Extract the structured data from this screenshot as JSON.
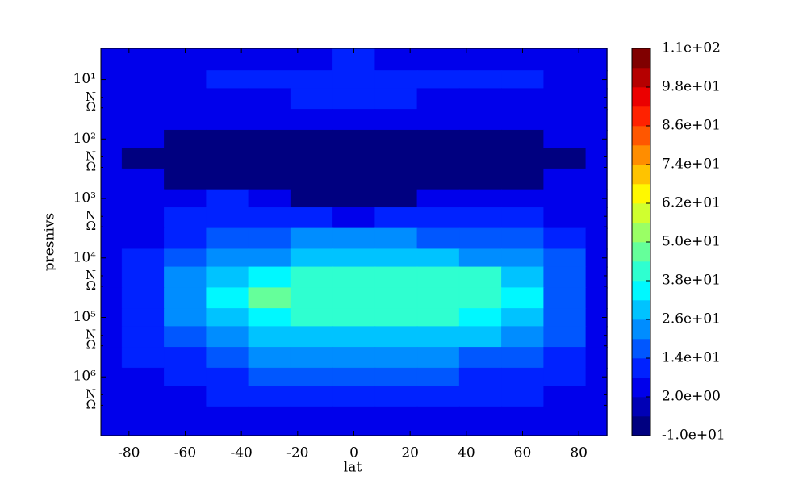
{
  "chart_data": {
    "type": "contour",
    "x_label": "lat",
    "y_label": "presnivs",
    "colormap": "jet",
    "y_log": true,
    "y_inverted": true,
    "xlim": [
      -90,
      90
    ],
    "xticks": [
      -80,
      -60,
      -40,
      -20,
      0,
      20,
      40,
      60,
      80
    ],
    "ylim": [
      3,
      9700000
    ],
    "yticks": [
      {
        "value": 10,
        "label": "10¹"
      },
      {
        "value": 20,
        "label": "N"
      },
      {
        "value": 30,
        "label": "Ω"
      },
      {
        "value": 100,
        "label": "10²"
      },
      {
        "value": 200,
        "label": "N"
      },
      {
        "value": 300,
        "label": "Ω"
      },
      {
        "value": 1000,
        "label": "10³"
      },
      {
        "value": 2000,
        "label": "N"
      },
      {
        "value": 3000,
        "label": "Ω"
      },
      {
        "value": 10000,
        "label": "10⁴"
      },
      {
        "value": 20000,
        "label": "N"
      },
      {
        "value": 30000,
        "label": "Ω"
      },
      {
        "value": 100000,
        "label": "10⁵"
      },
      {
        "value": 200000,
        "label": "N"
      },
      {
        "value": 300000,
        "label": "Ω"
      },
      {
        "value": 1000000,
        "label": "10⁶"
      },
      {
        "value": 2000000,
        "label": "N"
      },
      {
        "value": 3000000,
        "label": "Ω"
      }
    ],
    "levels": [
      -10,
      -4,
      2,
      8,
      14,
      20,
      26,
      32,
      38,
      44,
      50,
      56,
      62,
      68,
      74,
      80,
      86,
      92,
      98,
      104,
      110
    ],
    "colorbar_ticks": [
      {
        "value": -10,
        "label": "-1.0e+01"
      },
      {
        "value": 2,
        "label": "2.0e+00"
      },
      {
        "value": 14,
        "label": "1.4e+01"
      },
      {
        "value": 26,
        "label": "2.6e+01"
      },
      {
        "value": 38,
        "label": "3.8e+01"
      },
      {
        "value": 50,
        "label": "5.0e+01"
      },
      {
        "value": 62,
        "label": "6.2e+01"
      },
      {
        "value": 74,
        "label": "7.4e+01"
      },
      {
        "value": 86,
        "label": "8.6e+01"
      },
      {
        "value": 98,
        "label": "9.8e+01"
      },
      {
        "value": 110,
        "label": "1.1e+02"
      }
    ],
    "x": [
      -90,
      -75,
      -60,
      -45,
      -30,
      -15,
      0,
      15,
      30,
      45,
      60,
      75,
      90
    ],
    "y": [
      5,
      10,
      20,
      50,
      100,
      200,
      500,
      1000,
      2000,
      5000,
      10000,
      20000,
      50000,
      100000,
      200000,
      500000,
      1000000,
      2000000,
      5000000
    ],
    "z": [
      [
        5,
        5,
        5,
        5,
        5,
        5,
        10,
        5,
        5,
        5,
        5,
        5,
        5
      ],
      [
        5,
        5,
        5,
        10,
        10,
        10,
        10,
        10,
        10,
        10,
        10,
        5,
        5
      ],
      [
        5,
        5,
        5,
        5,
        5,
        8,
        10,
        8,
        5,
        5,
        5,
        5,
        5
      ],
      [
        5,
        5,
        5,
        5,
        5,
        5,
        5,
        5,
        5,
        5,
        5,
        5,
        5
      ],
      [
        5,
        5,
        -5,
        -5,
        -5,
        -5,
        -5,
        -5,
        -5,
        -5,
        -5,
        5,
        5
      ],
      [
        5,
        -5,
        -5,
        -5,
        -5,
        -5,
        -5,
        -5,
        -5,
        -5,
        -5,
        -5,
        5
      ],
      [
        5,
        5,
        -5,
        -5,
        -5,
        -5,
        -5,
        -5,
        -5,
        -5,
        -5,
        5,
        5
      ],
      [
        5,
        5,
        5,
        10,
        5,
        -5,
        -5,
        -5,
        5,
        5,
        5,
        5,
        5
      ],
      [
        5,
        5,
        10,
        10,
        10,
        10,
        5,
        10,
        10,
        10,
        10,
        5,
        5
      ],
      [
        5,
        5,
        10,
        15,
        15,
        20,
        20,
        20,
        15,
        15,
        15,
        10,
        5
      ],
      [
        5,
        10,
        15,
        20,
        25,
        30,
        30,
        30,
        30,
        25,
        20,
        15,
        5
      ],
      [
        5,
        10,
        20,
        30,
        35,
        38,
        38,
        38,
        38,
        38,
        30,
        15,
        5
      ],
      [
        5,
        10,
        20,
        32,
        44,
        42,
        40,
        40,
        40,
        40,
        32,
        15,
        5
      ],
      [
        5,
        10,
        20,
        30,
        36,
        38,
        38,
        38,
        38,
        35,
        28,
        15,
        5
      ],
      [
        5,
        10,
        15,
        22,
        28,
        30,
        30,
        30,
        28,
        26,
        20,
        14,
        5
      ],
      [
        5,
        8,
        12,
        16,
        20,
        22,
        22,
        22,
        20,
        18,
        15,
        10,
        5
      ],
      [
        5,
        5,
        10,
        12,
        14,
        16,
        16,
        16,
        14,
        12,
        10,
        8,
        5
      ],
      [
        5,
        5,
        5,
        10,
        10,
        10,
        10,
        10,
        10,
        10,
        10,
        5,
        5
      ],
      [
        5,
        5,
        5,
        5,
        5,
        5,
        5,
        5,
        5,
        5,
        5,
        5,
        5
      ]
    ]
  }
}
